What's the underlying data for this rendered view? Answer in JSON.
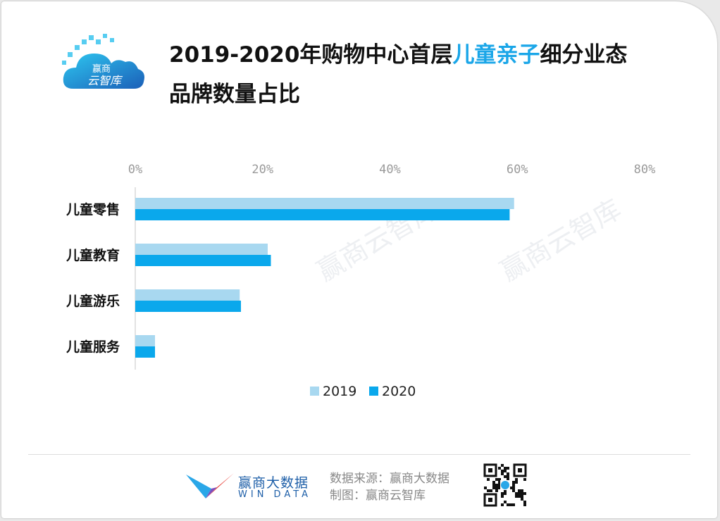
{
  "logo": {
    "line1": "赢商",
    "line2": "云智库"
  },
  "title": {
    "part1": "2019-2020年购物中心首层",
    "highlight": "儿童亲子",
    "part2": "细分业态",
    "line2": "品牌数量占比"
  },
  "colors": {
    "series_2019": "#a8d8f0",
    "series_2020": "#0aa8ec",
    "highlight": "#1aa6e8"
  },
  "watermark": "赢商云智库",
  "chart_data": {
    "type": "bar",
    "orientation": "horizontal",
    "categories": [
      "儿童零售",
      "儿童教育",
      "儿童游乐",
      "儿童服务"
    ],
    "series": [
      {
        "name": "2019",
        "values": [
          59.5,
          20.8,
          16.4,
          3.1
        ]
      },
      {
        "name": "2020",
        "values": [
          58.8,
          21.3,
          16.6,
          3.1
        ]
      }
    ],
    "xlim": [
      0,
      80
    ],
    "ticks": [
      "0%",
      "20%",
      "40%",
      "60%",
      "80%"
    ],
    "tick_values": [
      0,
      20,
      40,
      60,
      80
    ],
    "legend": "bottom-center",
    "grid": false
  },
  "footer": {
    "brand_cn": "赢商大数据",
    "brand_en": "WIN DATA",
    "source": "数据来源：赢商大数据",
    "made_by": "制图：赢商云智库"
  }
}
